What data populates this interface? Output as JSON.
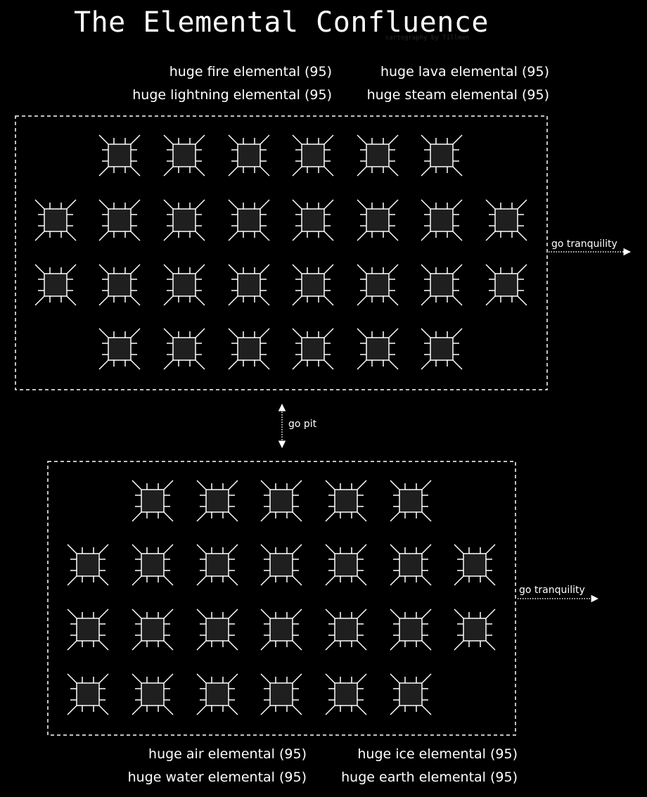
{
  "title": "The Elemental Confluence",
  "credit": "cartography by Tillmen",
  "upper_zone": {
    "mobs": [
      "huge fire elemental (95)",
      "huge lava elemental (95)",
      "huge lightning elemental (95)",
      "huge steam elemental (95)"
    ],
    "exit_label": "go tranquility",
    "row_room_counts": [
      6,
      8,
      8,
      6
    ]
  },
  "connector": {
    "label": "go pit"
  },
  "lower_zone": {
    "mobs": [
      "huge air elemental (95)",
      "huge ice elemental (95)",
      "huge water elemental (95)",
      "huge earth elemental (95)"
    ],
    "exit_label": "go tranquility",
    "row_room_counts": [
      5,
      7,
      7,
      6
    ]
  },
  "colors": {
    "background": "#000000",
    "room_fill": "#1f1f1f",
    "line": "#ffffff"
  }
}
